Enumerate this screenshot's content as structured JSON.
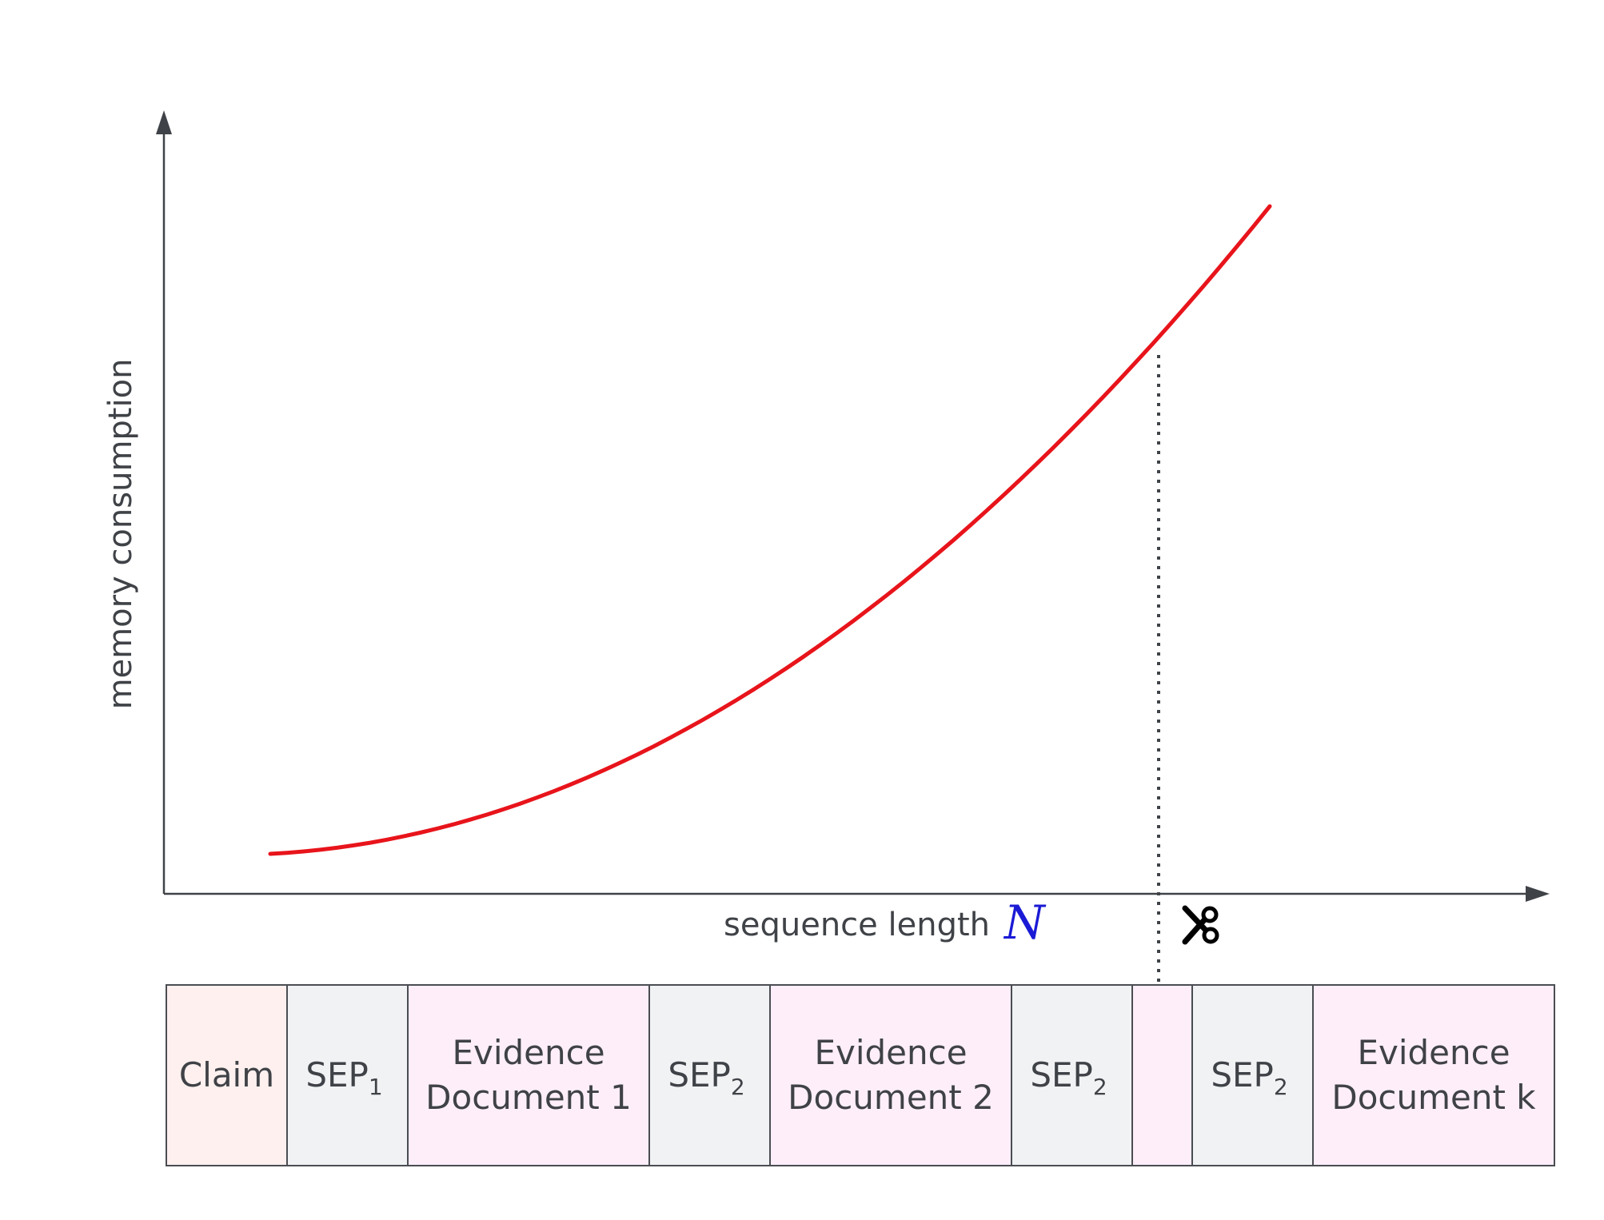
{
  "axes": {
    "ylabel": "memory consumption",
    "xlabel": "sequence length",
    "xlabel_symbol": "N"
  },
  "curve": {
    "shape": "quadratic",
    "color": "#e8141b"
  },
  "cutoff": {
    "icon": "scissors-icon",
    "line_style": "dotted"
  },
  "sequence": {
    "segments": [
      {
        "kind": "claim",
        "lines": [
          "Claim"
        ],
        "fill": "#fdf0ee"
      },
      {
        "kind": "sep",
        "base": "SEP",
        "sub": "1",
        "fill": "#f1f2f4"
      },
      {
        "kind": "evidence",
        "lines": [
          "Evidence",
          "Document 1"
        ],
        "fill": "#fdeefa"
      },
      {
        "kind": "sep",
        "base": "SEP",
        "sub": "2",
        "fill": "#f1f2f4"
      },
      {
        "kind": "evidence",
        "lines": [
          "Evidence",
          "Document 2"
        ],
        "fill": "#fdeefa"
      },
      {
        "kind": "sep",
        "base": "SEP",
        "sub": "2",
        "fill": "#f1f2f4"
      },
      {
        "kind": "gap",
        "lines": [],
        "fill": "#fdeefa"
      },
      {
        "kind": "sep",
        "base": "SEP",
        "sub": "2",
        "fill": "#f1f2f4"
      },
      {
        "kind": "evidence",
        "lines": [
          "Evidence",
          "Document k"
        ],
        "fill": "#fdeefa"
      }
    ]
  }
}
